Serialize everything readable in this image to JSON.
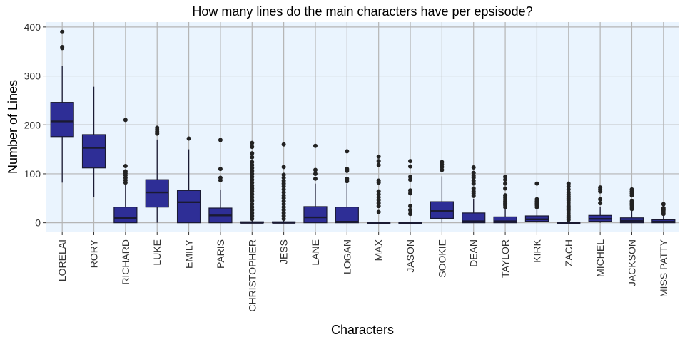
{
  "chart_data": {
    "type": "box",
    "title": "How many lines do the main characters have per epsisode?",
    "xlabel": "Characters",
    "ylabel": "Number of Lines",
    "ylim": [
      -18,
      410
    ],
    "yticks": [
      0,
      100,
      200,
      300,
      400
    ],
    "grid": true,
    "legend": "none",
    "colors": {
      "panel": "#eaf4fe",
      "grid": "#b5b5b5",
      "box_fill": "#2e2e96",
      "box_line": "#1a1a33",
      "median": "#1a1a33",
      "outlier": "#222222"
    },
    "categories": [
      "LORELAI",
      "RORY",
      "RICHARD",
      "LUKE",
      "EMILY",
      "PARIS",
      "CHRISTOPHER",
      "JESS",
      "LANE",
      "LOGAN",
      "MAX",
      "JASON",
      "SOOKIE",
      "DEAN",
      "TAYLOR",
      "KIRK",
      "ZACH",
      "MICHEL",
      "JACKSON",
      "MISS PATTY"
    ],
    "boxes": [
      {
        "name": "LORELAI",
        "whisker_low": 82,
        "q1": 176,
        "median": 207,
        "q3": 246,
        "whisker_high": 320,
        "outliers": [
          357,
          359,
          390
        ]
      },
      {
        "name": "RORY",
        "whisker_low": 52,
        "q1": 112,
        "median": 153,
        "q3": 180,
        "whisker_high": 278,
        "outliers": []
      },
      {
        "name": "RICHARD",
        "whisker_low": 0,
        "q1": 0,
        "median": 10,
        "q3": 32,
        "whisker_high": 78,
        "outliers": [
          82,
          87,
          92,
          97,
          101,
          105,
          116,
          210
        ]
      },
      {
        "name": "LUKE",
        "whisker_low": 0,
        "q1": 32,
        "median": 62,
        "q3": 88,
        "whisker_high": 170,
        "outliers": [
          182,
          186,
          190,
          194
        ]
      },
      {
        "name": "EMILY",
        "whisker_low": 0,
        "q1": 0,
        "median": 42,
        "q3": 66,
        "whisker_high": 150,
        "outliers": [
          172
        ]
      },
      {
        "name": "PARIS",
        "whisker_low": 0,
        "q1": 0,
        "median": 15,
        "q3": 30,
        "whisker_high": 68,
        "outliers": [
          87,
          92,
          110,
          169
        ]
      },
      {
        "name": "CHRISTOPHER",
        "whisker_low": 0,
        "q1": 0,
        "median": 0,
        "q3": 2,
        "whisker_high": 5,
        "outliers": [
          8,
          14,
          20,
          26,
          32,
          38,
          45,
          52,
          58,
          64,
          70,
          76,
          82,
          88,
          94,
          100,
          106,
          112,
          118,
          124,
          134,
          142,
          155,
          163
        ]
      },
      {
        "name": "JESS",
        "whisker_low": 0,
        "q1": 0,
        "median": 0,
        "q3": 2,
        "whisker_high": 4,
        "outliers": [
          8,
          14,
          20,
          26,
          32,
          38,
          44,
          50,
          56,
          62,
          68,
          74,
          80,
          86,
          92,
          98,
          114,
          160
        ]
      },
      {
        "name": "LANE",
        "whisker_low": 0,
        "q1": 0,
        "median": 11,
        "q3": 33,
        "whisker_high": 80,
        "outliers": [
          90,
          100,
          108,
          157
        ]
      },
      {
        "name": "LOGAN",
        "whisker_low": 0,
        "q1": 0,
        "median": 2,
        "q3": 32,
        "whisker_high": 80,
        "outliers": [
          85,
          90,
          106,
          110,
          146
        ]
      },
      {
        "name": "MAX",
        "whisker_low": 0,
        "q1": 0,
        "median": 0,
        "q3": 1,
        "whisker_high": 2,
        "outliers": [
          22,
          34,
          40,
          46,
          52,
          58,
          64,
          82,
          86,
          118,
          126,
          135
        ]
      },
      {
        "name": "JASON",
        "whisker_low": 0,
        "q1": 0,
        "median": 0,
        "q3": 1,
        "whisker_high": 2,
        "outliers": [
          18,
          26,
          34,
          60,
          66,
          88,
          94,
          115,
          126
        ]
      },
      {
        "name": "SOOKIE",
        "whisker_low": 0,
        "q1": 9,
        "median": 24,
        "q3": 43,
        "whisker_high": 95,
        "outliers": [
          108,
          114,
          119,
          124
        ]
      },
      {
        "name": "DEAN",
        "whisker_low": 0,
        "q1": 0,
        "median": 3,
        "q3": 20,
        "whisker_high": 48,
        "outliers": [
          55,
          60,
          64,
          70,
          80,
          86,
          92,
          96,
          102,
          113
        ]
      },
      {
        "name": "TAYLOR",
        "whisker_low": 0,
        "q1": 0,
        "median": 3,
        "q3": 12,
        "whisker_high": 28,
        "outliers": [
          32,
          36,
          40,
          44,
          48,
          52,
          56,
          70,
          80,
          88,
          94
        ]
      },
      {
        "name": "KIRK",
        "whisker_low": 0,
        "q1": 3,
        "median": 7,
        "q3": 14,
        "whisker_high": 28,
        "outliers": [
          32,
          36,
          40,
          44,
          48,
          80
        ]
      },
      {
        "name": "ZACH",
        "whisker_low": 0,
        "q1": 0,
        "median": 0,
        "q3": 1,
        "whisker_high": 2,
        "outliers": [
          6,
          10,
          14,
          18,
          22,
          26,
          30,
          34,
          38,
          42,
          46,
          50,
          54,
          58,
          62,
          68,
          74,
          80
        ]
      },
      {
        "name": "MICHEL",
        "whisker_low": 0,
        "q1": 3,
        "median": 8,
        "q3": 15,
        "whisker_high": 32,
        "outliers": [
          40,
          48,
          64,
          68,
          72
        ]
      },
      {
        "name": "JACKSON",
        "whisker_low": 0,
        "q1": 0,
        "median": 4,
        "q3": 10,
        "whisker_high": 24,
        "outliers": [
          28,
          32,
          36,
          40,
          44,
          56,
          60,
          64,
          68
        ]
      },
      {
        "name": "MISS PATTY",
        "whisker_low": 0,
        "q1": 0,
        "median": 2,
        "q3": 6,
        "whisker_high": 14,
        "outliers": [
          18,
          22,
          26,
          30,
          38
        ]
      }
    ]
  }
}
